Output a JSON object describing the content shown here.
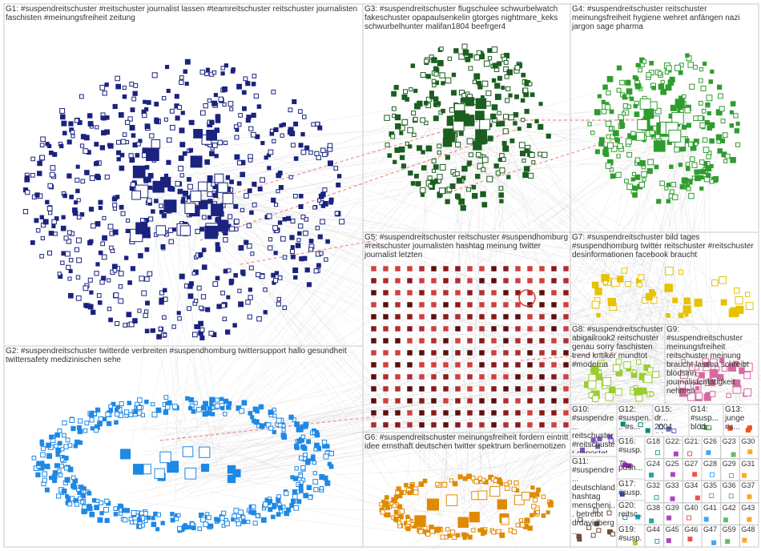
{
  "groups": [
    {
      "label": "G1: #suspendreitschuster #reitschuster journalist lassen #teamreitschuster reitschuster journalisten faschisten #meinungsfreiheit zeitung"
    },
    {
      "label": "G3: #suspendreitschuster flugschulee schwurbelwatch fakeschuster opapaulsenkelin gtorges nightmare_keks schwurbelhunter malifan1804 beefrger4"
    },
    {
      "label": "G4: #suspendreitschuster reitschuster meinungsfreiheit hygiene wehret anfängen nazi jargon sage pharma"
    },
    {
      "label": "G5: #suspendreitschuster reitschuster #suspendhomburg #reitschuster journalisten hashtag meinung twitter journalist letzten"
    },
    {
      "label": "G7: #suspendreitschuster bild tages #suspendhomburg twitter reitschuster #reitschuster desinformationen facebook braucht"
    },
    {
      "label": "G2: #suspendreitschuster twitterde verbreiten #suspendhomburg twittersupport hallo gesundheit twittersafety medizinischen sehe"
    },
    {
      "label": "G8: #suspendreitschuster abigailrook2 reitschuster genau sorry faschisten trend kritiker mundtot #moderna"
    },
    {
      "label": "G9: #suspendreitschuster meinungsfreiheit reitschuster meinung braucht lassen schreibt blödsinn journalistentätigkeit nehmen"
    },
    {
      "label": "G6: #suspendreitschuster meinungsfreiheit fordern eintritt idee ernsthaft deutschen twitter spektrum berlinernotizen"
    },
    {
      "label": "G10: #suspendre... reitschuster #reitschuster gepostet spaet08er #impfungen #corona..."
    },
    {
      "label": "G11: #suspendre... deutschland hashtag menschenj... betreibt drdavidberg..."
    },
    {
      "label": "G12: #suspen... #s..."
    },
    {
      "label": "G15: dr... 2004 #denise..."
    },
    {
      "label": "G14: #susp... blöd..."
    },
    {
      "label": "G13: junge #s..."
    },
    {
      "label": "G16: #susp... push..."
    },
    {
      "label": "G17: #susp... schnitt..."
    },
    {
      "label": "G20: reitsc..."
    },
    {
      "label": "G19: #susp..."
    },
    {
      "label": "G18"
    },
    {
      "label": "G22:"
    },
    {
      "label": "G21:"
    },
    {
      "label": "G26"
    },
    {
      "label": "G23"
    },
    {
      "label": "G30"
    },
    {
      "label": "G24"
    },
    {
      "label": "G25"
    },
    {
      "label": "G27"
    },
    {
      "label": "G28"
    },
    {
      "label": "G29"
    },
    {
      "label": "G31"
    },
    {
      "label": "G32"
    },
    {
      "label": "G33"
    },
    {
      "label": "G34"
    },
    {
      "label": "G35"
    },
    {
      "label": "G36"
    },
    {
      "label": "G37"
    },
    {
      "label": "G38"
    },
    {
      "label": "G39"
    },
    {
      "label": "G40"
    },
    {
      "label": "G41"
    },
    {
      "label": "G42"
    },
    {
      "label": "G43"
    },
    {
      "label": "G44"
    },
    {
      "label": "G45"
    },
    {
      "label": "G46"
    },
    {
      "label": "G47"
    },
    {
      "label": "G59"
    },
    {
      "label": "G48"
    }
  ]
}
